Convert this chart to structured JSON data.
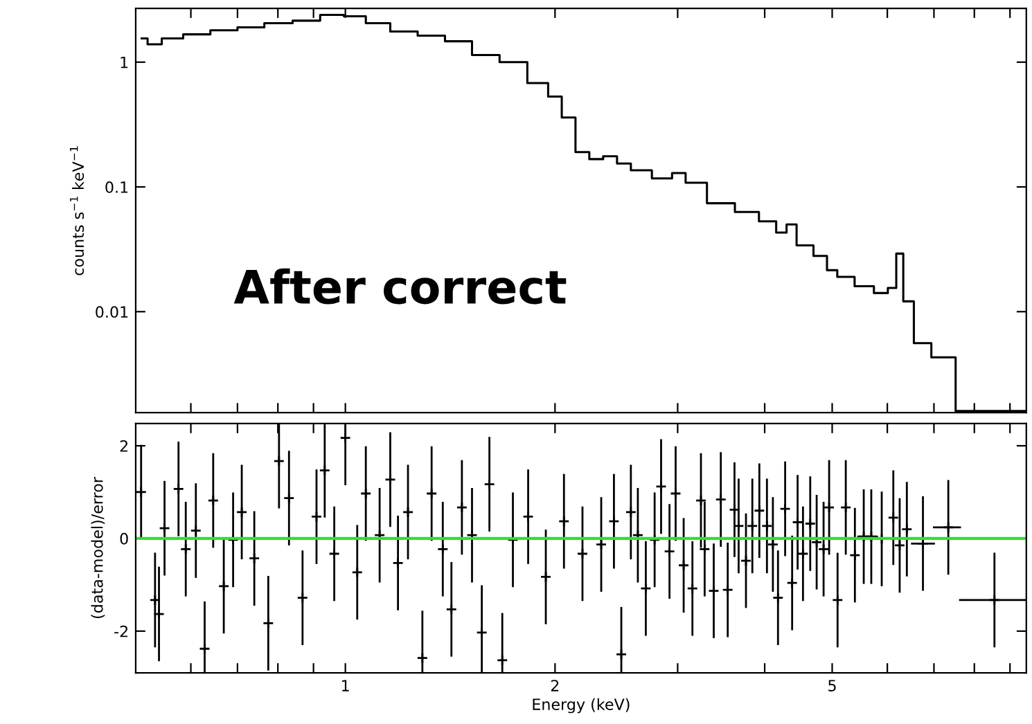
{
  "chart_data": [
    {
      "type": "step",
      "ylabel": "counts s$^{−1}$ keV$^{−1}$",
      "log": "xy",
      "tick_labels": "y",
      "grid": false,
      "xlim": [
        0.5,
        9.5
      ],
      "xticks": [
        {
          "value": 0.6,
          "label": null
        },
        {
          "value": 0.7,
          "label": null
        },
        {
          "value": 0.8,
          "label": null
        },
        {
          "value": 0.9,
          "label": null
        },
        1,
        2,
        {
          "value": 3,
          "label": null
        },
        {
          "value": 4,
          "label": null
        },
        5,
        {
          "value": 6,
          "label": null
        },
        {
          "value": 7,
          "label": null
        },
        {
          "value": 8,
          "label": null
        },
        {
          "value": 9,
          "label": null
        }
      ],
      "ylim": [
        0.00155,
        2.7
      ],
      "yticks": [
        0.01,
        0.1,
        1
      ],
      "annotations": [
        "After correct"
      ],
      "series": [
        {
          "color": "#000000",
          "x": [
            0.51,
            0.53,
            0.56,
            0.61,
            0.67,
            0.73,
            0.8,
            0.88,
            0.96,
            1.03,
            1.11,
            1.21,
            1.33,
            1.45,
            1.59,
            1.74,
            1.91,
            2.0,
            2.09,
            2.19,
            2.29,
            2.4,
            2.51,
            2.63,
            2.88,
            3.01,
            3.15,
            3.46,
            3.79,
            4.06,
            4.25,
            4.35,
            4.54,
            4.86,
            4.97,
            5.2,
            5.57,
            5.91,
            6.11,
            6.25,
            6.4,
            6.7,
            7.18,
            7.86,
            9.5
          ],
          "values": [
            1.55,
            1.39,
            1.55,
            1.67,
            1.8,
            1.9,
            2.05,
            2.15,
            2.39,
            2.33,
            2.05,
            1.76,
            1.63,
            1.47,
            1.14,
            1.0,
            0.68,
            0.53,
            0.36,
            0.19,
            0.167,
            0.176,
            0.154,
            0.136,
            0.117,
            0.129,
            0.108,
            0.074,
            0.063,
            0.053,
            0.043,
            0.05,
            0.034,
            0.028,
            0.0215,
            0.019,
            0.016,
            0.0141,
            0.0155,
            0.0292,
            0.0121,
            0.0056,
            0.0043,
            0.0016,
            0.0016
          ]
        }
      ]
    },
    {
      "type": "scatter",
      "xlabel": "Energy (keV)",
      "ylabel": "(data-model)/error",
      "log": "x",
      "grid": false,
      "marker": "cross",
      "xlim": [
        0.5,
        9.5
      ],
      "xticks": [
        {
          "value": 0.6,
          "label": null
        },
        {
          "value": 0.7,
          "label": null
        },
        {
          "value": 0.8,
          "label": null
        },
        {
          "value": 0.9,
          "label": null
        },
        1,
        2,
        {
          "value": 3,
          "label": null
        },
        {
          "value": 4,
          "label": null
        },
        5,
        {
          "value": 6,
          "label": null
        },
        {
          "value": 7,
          "label": null
        },
        {
          "value": 8,
          "label": null
        },
        {
          "value": 9,
          "label": null
        }
      ],
      "ylim": [
        -2.9,
        2.48
      ],
      "yticks": [
        -2,
        0,
        2
      ],
      "ref_lines": [
        {
          "axis": "y",
          "value": 0,
          "color": "#33dd33"
        }
      ],
      "series": [
        {
          "color": "#000000",
          "x": [
            0.509,
            0.533,
            0.54,
            0.55,
            0.576,
            0.59,
            0.61,
            0.628,
            0.646,
            0.669,
            0.69,
            0.71,
            0.74,
            0.775,
            0.803,
            0.83,
            0.868,
            0.909,
            0.934,
            0.964,
            1.0,
            1.04,
            1.07,
            1.12,
            1.16,
            1.19,
            1.23,
            1.29,
            1.33,
            1.38,
            1.42,
            1.47,
            1.52,
            1.57,
            1.61,
            1.68,
            1.74,
            1.83,
            1.94,
            2.06,
            2.19,
            2.33,
            2.43,
            2.49,
            2.57,
            2.63,
            2.7,
            2.78,
            2.84,
            2.92,
            2.98,
            3.06,
            3.15,
            3.24,
            3.28,
            3.38,
            3.46,
            3.54,
            3.62,
            3.67,
            3.76,
            3.84,
            3.93,
            4.03,
            4.11,
            4.18,
            4.28,
            4.38,
            4.46,
            4.54,
            4.65,
            4.75,
            4.86,
            4.95,
            5.09,
            5.23,
            5.39,
            5.55,
            5.69,
            5.89,
            6.12,
            6.25,
            6.4,
            6.75,
            7.34,
            8.55
          ],
          "values": [
            1.0,
            -1.33,
            -1.63,
            0.22,
            1.07,
            -0.23,
            0.17,
            -2.38,
            0.82,
            -1.03,
            -0.03,
            0.57,
            -0.43,
            -1.83,
            1.67,
            0.87,
            -1.28,
            0.47,
            1.47,
            -0.33,
            2.17,
            -0.73,
            0.97,
            0.07,
            1.27,
            -0.53,
            0.57,
            -2.58,
            0.97,
            -0.23,
            -1.53,
            0.67,
            0.07,
            -2.03,
            1.17,
            -2.63,
            -0.03,
            0.47,
            -0.83,
            0.37,
            -0.33,
            -0.13,
            0.37,
            -2.5,
            0.57,
            0.07,
            -1.08,
            -0.03,
            1.12,
            -0.28,
            0.97,
            -0.58,
            -1.08,
            0.82,
            -0.23,
            -1.13,
            0.84,
            -1.11,
            0.62,
            0.27,
            -0.48,
            0.27,
            0.6,
            0.27,
            -0.13,
            -1.28,
            0.64,
            -0.96,
            0.35,
            -0.33,
            0.32,
            -0.08,
            -0.23,
            0.67,
            -1.33,
            0.67,
            -0.36,
            0.04,
            0.04,
            -0.01,
            0.45,
            -0.15,
            0.2,
            -0.11,
            0.24,
            -1.33
          ],
          "errors": [
            1,
            1,
            1,
            1,
            1,
            1,
            1,
            1,
            1,
            1,
            1,
            1,
            1,
            1,
            1,
            1,
            1,
            1,
            1,
            1,
            1,
            1,
            1,
            1,
            1,
            1,
            1,
            1,
            1,
            1,
            1,
            1,
            1,
            1,
            1,
            1,
            1,
            1,
            1,
            1,
            1,
            1,
            1,
            1,
            1,
            1,
            1,
            1,
            1,
            1,
            1,
            1,
            1,
            1,
            1,
            1,
            1,
            1,
            1,
            1,
            1,
            1,
            1,
            1,
            1,
            1,
            1,
            1,
            1,
            1,
            1,
            1,
            1,
            1,
            1,
            1,
            1,
            1,
            1,
            1,
            1,
            1,
            1,
            1,
            1,
            1
          ],
          "xerrors": [
            null,
            null,
            null,
            null,
            null,
            null,
            null,
            null,
            null,
            null,
            null,
            null,
            null,
            null,
            null,
            null,
            null,
            null,
            null,
            null,
            null,
            null,
            null,
            null,
            null,
            null,
            null,
            null,
            null,
            null,
            null,
            null,
            null,
            null,
            null,
            null,
            null,
            null,
            null,
            null,
            null,
            null,
            null,
            null,
            null,
            null,
            null,
            null,
            null,
            null,
            null,
            null,
            null,
            null,
            null,
            null,
            null,
            null,
            null,
            null,
            null,
            null,
            null,
            null,
            null,
            null,
            null,
            null,
            null,
            null,
            null,
            null,
            null,
            null,
            null,
            null,
            null,
            [
              5.45,
              5.65
            ],
            [
              5.65,
              5.8
            ],
            [
              5.8,
              6.0
            ],
            null,
            null,
            null,
            [
              6.51,
              7.0
            ],
            [
              7.0,
              7.63
            ],
            [
              7.63,
              9.47
            ]
          ]
        }
      ]
    }
  ]
}
